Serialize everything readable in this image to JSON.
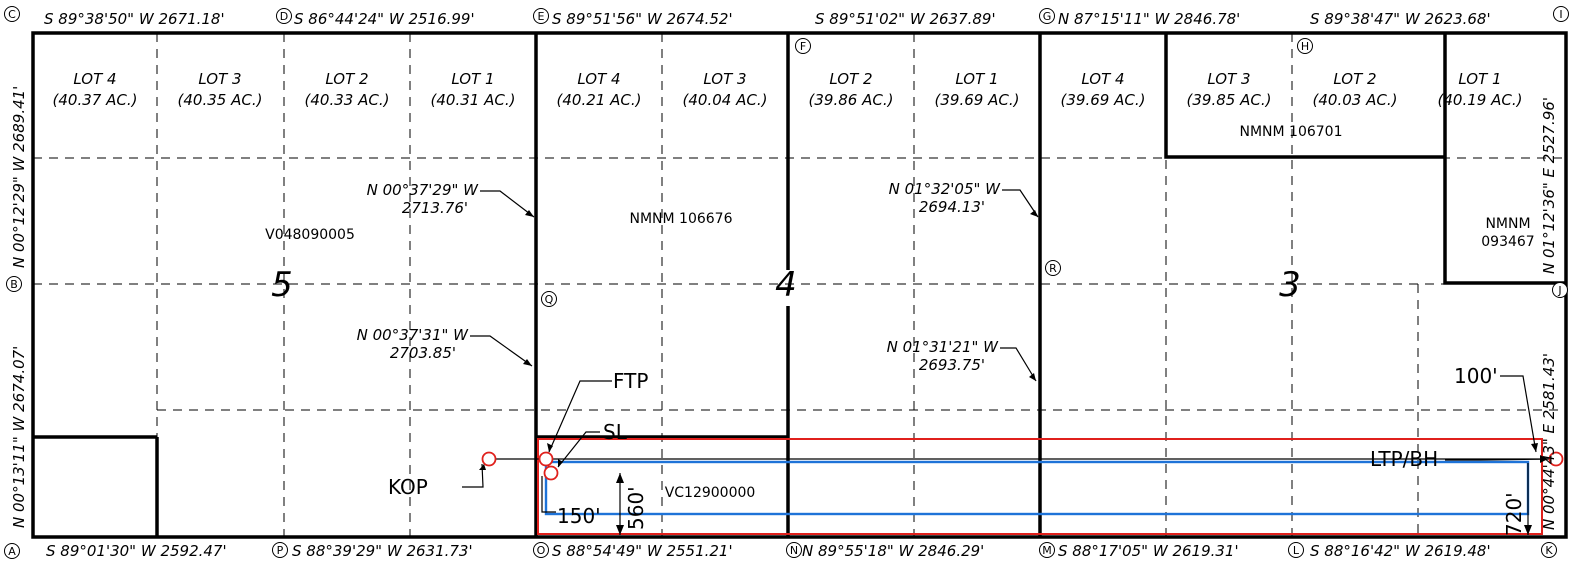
{
  "top_bearings": [
    "S 89°38'50\" W 2671.18'",
    "S 86°44'24\" W 2516.99'",
    "S 89°51'56\" W 2674.52'",
    "S 89°51'02\" W 2637.89'",
    "N 87°15'11\" W 2846.78'",
    "S 89°38'47\" W 2623.68'"
  ],
  "bottom_bearings": [
    "S 89°01'30\" W 2592.47'",
    "S 88°39'29\" W 2631.73'",
    "S 88°54'49\" W 2551.21'",
    "N 89°55'18\" W 2846.29'",
    "S 88°17'05\" W 2619.31'",
    "S 88°16'42\" W 2619.48'"
  ],
  "left_bearings": [
    "N 00°12'29\" W 2689.41'",
    "N 00°13'11\" W 2674.07'"
  ],
  "right_bearings": [
    "N 01°12'36\" E 2527.96'",
    "N 00°44'43\" E 2581.43'"
  ],
  "corners": [
    "A",
    "B",
    "C",
    "D",
    "E",
    "F",
    "G",
    "H",
    "I",
    "J",
    "K",
    "L",
    "M",
    "N",
    "O",
    "P",
    "Q",
    "R"
  ],
  "lots": [
    {
      "name": "LOT 4",
      "acres": "(40.37 AC.)"
    },
    {
      "name": "LOT 3",
      "acres": "(40.35 AC.)"
    },
    {
      "name": "LOT 2",
      "acres": "(40.33 AC.)"
    },
    {
      "name": "LOT 1",
      "acres": "(40.31 AC.)"
    },
    {
      "name": "LOT 4",
      "acres": "(40.21 AC.)"
    },
    {
      "name": "LOT 3",
      "acres": "(40.04 AC.)"
    },
    {
      "name": "LOT 2",
      "acres": "(39.86 AC.)"
    },
    {
      "name": "LOT 1",
      "acres": "(39.69 AC.)"
    },
    {
      "name": "LOT 4",
      "acres": "(39.69 AC.)"
    },
    {
      "name": "LOT 3",
      "acres": "(39.85 AC.)"
    },
    {
      "name": "LOT 2",
      "acres": "(40.03 AC.)"
    },
    {
      "name": "LOT 1",
      "acres": "(40.19 AC.)"
    }
  ],
  "sections": [
    "5",
    "4",
    "3"
  ],
  "leases": [
    "V048090005",
    "NMNM 106676",
    "NMNM 106701",
    "NMNM",
    "093467",
    "VC12900000"
  ],
  "interior_bearings": [
    {
      "bearing": "N 00°37'29\" W",
      "distance": "2713.76'"
    },
    {
      "bearing": "N 00°37'31\" W",
      "distance": "2703.85'"
    },
    {
      "bearing": "N 01°32'05\" W",
      "distance": "2694.13'"
    },
    {
      "bearing": "N 01°31'21\" W",
      "distance": "2693.75'"
    }
  ],
  "callouts": {
    "ftp": "FTP",
    "sl": "SL",
    "kop": "KOP",
    "ltp_bh": "LTP/BH",
    "dist_100": "100'",
    "dist_150": "150'",
    "dist_560": "560'",
    "dist_720": "720'"
  },
  "colors": {
    "line": "#000000",
    "spacing_unit": "#e0201c",
    "setback": "#1e73d8",
    "well_point": "#e0201c"
  }
}
